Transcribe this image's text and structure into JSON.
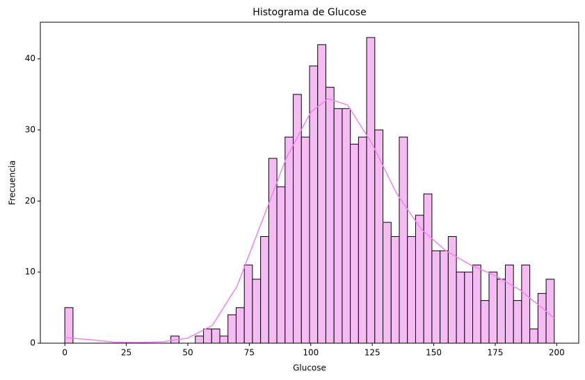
{
  "chart_data": {
    "type": "histogram",
    "title": "Histograma de Glucose",
    "xlabel": "Glucose",
    "ylabel": "Frecuencia",
    "bins": [
      0,
      3.32,
      6.63,
      9.95,
      13.27,
      16.58,
      19.9,
      23.22,
      26.53,
      29.85,
      33.17,
      36.48,
      39.8,
      43.12,
      46.43,
      49.75,
      53.07,
      56.38,
      59.7,
      63.02,
      66.33,
      69.65,
      72.97,
      76.28,
      79.6,
      82.92,
      86.23,
      89.55,
      92.87,
      96.18,
      99.5,
      102.82,
      106.13,
      109.45,
      112.77,
      116.08,
      119.4,
      122.72,
      126.03,
      129.35,
      132.67,
      135.98,
      139.3,
      142.62,
      145.93,
      149.25,
      152.57,
      155.88,
      159.2,
      162.52,
      165.83,
      169.15,
      172.47,
      175.78,
      179.1,
      182.42,
      185.73,
      189.05,
      192.37,
      195.68,
      199
    ],
    "counts": [
      5,
      0,
      0,
      0,
      0,
      0,
      0,
      0,
      0,
      0,
      0,
      0,
      0,
      1,
      0,
      0,
      1,
      2,
      2,
      1,
      4,
      5,
      11,
      9,
      15,
      26,
      22,
      29,
      35,
      29,
      39,
      42,
      36,
      33,
      33,
      28,
      29,
      43,
      30,
      17,
      15,
      29,
      15,
      18,
      21,
      13,
      13,
      15,
      10,
      10,
      11,
      6,
      10,
      9,
      11,
      6,
      11,
      2,
      7,
      9
    ],
    "color": "#f5bbf3",
    "edgecolor": "#000000",
    "kde": {
      "color": "#ee82ee",
      "x": [
        0,
        10,
        20,
        30,
        40,
        50,
        60,
        70,
        80,
        90,
        100,
        107,
        115,
        125,
        135,
        145,
        155,
        165,
        175,
        185,
        195,
        199
      ],
      "values": [
        0.8,
        0.5,
        0.15,
        0.1,
        0.2,
        0.7,
        2.5,
        8,
        17,
        26,
        32.5,
        34.4,
        33.5,
        28,
        21,
        16,
        13,
        11,
        9.5,
        7.5,
        4.7,
        3.5
      ]
    },
    "xlim": [
      -9.95,
      208.95
    ],
    "ylim": [
      0,
      45.15
    ],
    "xticks": [
      0,
      25,
      50,
      75,
      100,
      125,
      150,
      175,
      200
    ],
    "yticks": [
      0,
      10,
      20,
      30,
      40
    ]
  }
}
